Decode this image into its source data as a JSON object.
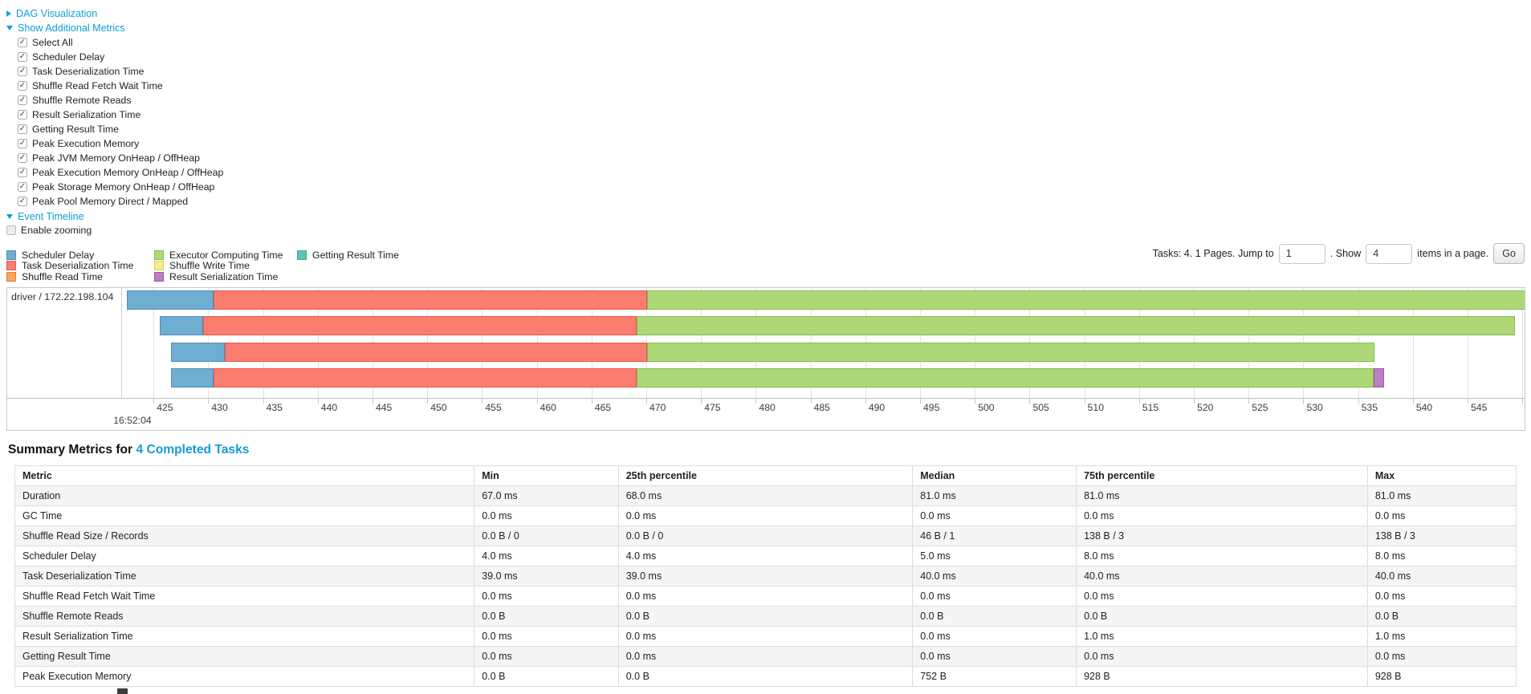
{
  "colors": {
    "link": "#0e9fd8",
    "chart": {
      "scheduler-delay": {
        "fill": "#6fadd1",
        "border": "#4d90ba"
      },
      "task-deserialization": {
        "fill": "#fb7d70",
        "border": "#e25b4e"
      },
      "shuffle-read": {
        "fill": "#f9a55c",
        "border": "#df8138"
      },
      "executor-computing": {
        "fill": "#aed877",
        "border": "#87bb49"
      },
      "shuffle-write": {
        "fill": "#f4ef88",
        "border": "#d8d058"
      },
      "result-serialization": {
        "fill": "#bc80c0",
        "border": "#9d59a2"
      },
      "getting-result": {
        "fill": "#5fc4b5",
        "border": "#3da893"
      }
    }
  },
  "controls": {
    "dag_link": "DAG Visualization",
    "metrics_link": "Show Additional Metrics",
    "timeline_link": "Event Timeline",
    "metric_checkboxes": [
      "Select All",
      "Scheduler Delay",
      "Task Deserialization Time",
      "Shuffle Read Fetch Wait Time",
      "Shuffle Remote Reads",
      "Result Serialization Time",
      "Getting Result Time",
      "Peak Execution Memory",
      "Peak JVM Memory OnHeap / OffHeap",
      "Peak Execution Memory OnHeap / OffHeap",
      "Peak Storage Memory OnHeap / OffHeap",
      "Peak Pool Memory Direct / Mapped"
    ],
    "enable_zooming_label": "Enable zooming"
  },
  "legend": {
    "columns": [
      [
        {
          "metric": "scheduler-delay",
          "label": "Scheduler Delay"
        },
        {
          "metric": "task-deserialization",
          "label": "Task Deserialization Time"
        },
        {
          "metric": "shuffle-read",
          "label": "Shuffle Read Time"
        }
      ],
      [
        {
          "metric": "executor-computing",
          "label": "Executor Computing Time"
        },
        {
          "metric": "shuffle-write",
          "label": "Shuffle Write Time"
        },
        {
          "metric": "result-serialization",
          "label": "Result Serialization Time"
        }
      ],
      [
        {
          "metric": "getting-result",
          "label": "Getting Result Time"
        }
      ]
    ]
  },
  "pagination": {
    "prefix": "Tasks: 4. 1 Pages. Jump to",
    "jump_value": "1",
    "mid": ". Show",
    "show_value": "4",
    "suffix": "items in a page.",
    "go_label": "Go"
  },
  "chart_data": {
    "type": "timeline",
    "row_label": "driver / 172.22.198.104",
    "axis": {
      "min": 422.2,
      "max": 550.2,
      "tick_start": 425,
      "tick_end": 550,
      "tick_step": 5,
      "time_label": "16:52:04",
      "unit": "ms within second 16:52:04"
    },
    "row_tops": [
      3,
      35,
      68,
      100
    ],
    "tasks": [
      {
        "segments": [
          {
            "metric": "scheduler-delay",
            "start": 422.6,
            "end": 430.5
          },
          {
            "metric": "task-deserialization",
            "start": 430.5,
            "end": 470.1
          },
          {
            "metric": "executor-computing",
            "start": 470.1,
            "end": 551.6
          }
        ]
      },
      {
        "segments": [
          {
            "metric": "scheduler-delay",
            "start": 425.6,
            "end": 429.5
          },
          {
            "metric": "task-deserialization",
            "start": 429.5,
            "end": 469.1
          },
          {
            "metric": "executor-computing",
            "start": 469.1,
            "end": 549.3
          }
        ]
      },
      {
        "segments": [
          {
            "metric": "scheduler-delay",
            "start": 426.6,
            "end": 431.5
          },
          {
            "metric": "task-deserialization",
            "start": 431.5,
            "end": 470.1
          },
          {
            "metric": "executor-computing",
            "start": 470.1,
            "end": 536.5
          }
        ]
      },
      {
        "segments": [
          {
            "metric": "scheduler-delay",
            "start": 426.6,
            "end": 430.5
          },
          {
            "metric": "task-deserialization",
            "start": 430.5,
            "end": 469.1
          },
          {
            "metric": "executor-computing",
            "start": 469.1,
            "end": 536.4
          },
          {
            "metric": "result-serialization",
            "start": 536.4,
            "end": 537.4
          }
        ]
      }
    ]
  },
  "summary": {
    "title_prefix": "Summary Metrics for ",
    "title_link": "4 Completed Tasks",
    "headers": [
      "Metric",
      "Min",
      "25th percentile",
      "Median",
      "75th percentile",
      "Max"
    ],
    "col_widths": [
      "30.6%",
      "9.6%",
      "19.6%",
      "10.9%",
      "19.4%",
      "9.9%"
    ],
    "rows": [
      {
        "metric": "Duration",
        "values": [
          "67.0 ms",
          "68.0 ms",
          "81.0 ms",
          "81.0 ms",
          "81.0 ms"
        ]
      },
      {
        "metric": "GC Time",
        "values": [
          "0.0 ms",
          "0.0 ms",
          "0.0 ms",
          "0.0 ms",
          "0.0 ms"
        ]
      },
      {
        "metric": "Shuffle Read Size / Records",
        "values": [
          "0.0 B / 0",
          "0.0 B / 0",
          "46 B / 1",
          "138 B / 3",
          "138 B / 3"
        ]
      },
      {
        "metric": "Scheduler Delay",
        "values": [
          "4.0 ms",
          "4.0 ms",
          "5.0 ms",
          "8.0 ms",
          "8.0 ms"
        ]
      },
      {
        "metric": "Task Deserialization Time",
        "values": [
          "39.0 ms",
          "39.0 ms",
          "40.0 ms",
          "40.0 ms",
          "40.0 ms"
        ]
      },
      {
        "metric": "Shuffle Read Fetch Wait Time",
        "values": [
          "0.0 ms",
          "0.0 ms",
          "0.0 ms",
          "0.0 ms",
          "0.0 ms"
        ]
      },
      {
        "metric": "Shuffle Remote Reads",
        "values": [
          "0.0 B",
          "0.0 B",
          "0.0 B",
          "0.0 B",
          "0.0 B"
        ]
      },
      {
        "metric": "Result Serialization Time",
        "values": [
          "0.0 ms",
          "0.0 ms",
          "0.0 ms",
          "1.0 ms",
          "1.0 ms"
        ]
      },
      {
        "metric": "Getting Result Time",
        "values": [
          "0.0 ms",
          "0.0 ms",
          "0.0 ms",
          "0.0 ms",
          "0.0 ms"
        ]
      },
      {
        "metric": "Peak Execution Memory",
        "values": [
          "0.0 B",
          "0.0 B",
          "752 B",
          "928 B",
          "928 B"
        ]
      }
    ]
  }
}
